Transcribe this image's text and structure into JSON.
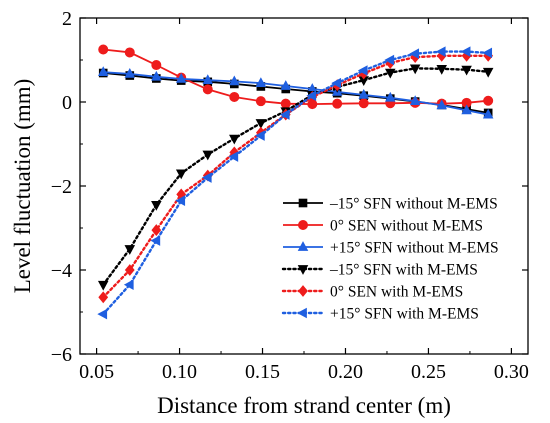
{
  "chart_data": {
    "type": "line",
    "title": "",
    "xlabel": "Distance from strand center (m)",
    "ylabel": "Level fluctuation (mm)",
    "xlim": [
      0.04,
      0.31
    ],
    "ylim": [
      -6,
      2
    ],
    "xticks": [
      "0.05",
      "0.10",
      "0.15",
      "0.20",
      "0.25",
      "0.30"
    ],
    "yticks": [
      "2",
      "0",
      "−2",
      "−4",
      "−6"
    ],
    "grid": false,
    "legend_position": "bottom-right",
    "x": [
      0.054,
      0.07,
      0.086,
      0.101,
      0.117,
      0.133,
      0.149,
      0.164,
      0.18,
      0.195,
      0.211,
      0.227,
      0.242,
      0.258,
      0.273,
      0.286
    ],
    "series": [
      {
        "name": "–15° SFN without M-EMS",
        "color": "#000000",
        "marker": "square",
        "dash": "solid",
        "values": [
          0.69,
          0.63,
          0.56,
          0.51,
          0.48,
          0.43,
          0.37,
          0.31,
          0.25,
          0.21,
          0.15,
          0.08,
          0.01,
          -0.07,
          -0.17,
          -0.26
        ]
      },
      {
        "name": "0° SEN without M-EMS",
        "color": "#ee1c1c",
        "marker": "circle",
        "dash": "solid",
        "values": [
          1.25,
          1.18,
          0.88,
          0.58,
          0.3,
          0.12,
          0.02,
          -0.04,
          -0.05,
          -0.04,
          -0.03,
          -0.03,
          -0.02,
          -0.04,
          -0.02,
          0.03
        ]
      },
      {
        "name": "+15° SFN without M-EMS",
        "color": "#1f5fe0",
        "marker": "triangle-up",
        "dash": "solid",
        "values": [
          0.71,
          0.67,
          0.6,
          0.55,
          0.52,
          0.49,
          0.45,
          0.38,
          0.31,
          0.24,
          0.17,
          0.1,
          0.02,
          -0.08,
          -0.2,
          -0.3
        ]
      },
      {
        "name": "–15° SFN with M-EMS",
        "color": "#000000",
        "marker": "triangle-down",
        "dash": "dotted",
        "values": [
          -4.35,
          -3.5,
          -2.45,
          -1.7,
          -1.25,
          -0.87,
          -0.5,
          -0.22,
          0.17,
          0.36,
          0.52,
          0.7,
          0.8,
          0.79,
          0.77,
          0.72
        ]
      },
      {
        "name": "0° SEN with M-EMS",
        "color": "#ee1c1c",
        "marker": "diamond",
        "dash": "dotted",
        "values": [
          -4.65,
          -4.0,
          -3.05,
          -2.2,
          -1.75,
          -1.2,
          -0.73,
          -0.3,
          0.12,
          0.4,
          0.68,
          0.93,
          1.07,
          1.1,
          1.1,
          1.1
        ]
      },
      {
        "name": "+15° SFN with M-EMS",
        "color": "#1f5fe0",
        "marker": "triangle-left",
        "dash": "dotted",
        "values": [
          -5.05,
          -4.35,
          -3.3,
          -2.35,
          -1.8,
          -1.3,
          -0.8,
          -0.3,
          0.15,
          0.45,
          0.75,
          1.0,
          1.15,
          1.2,
          1.2,
          1.17
        ]
      }
    ]
  }
}
